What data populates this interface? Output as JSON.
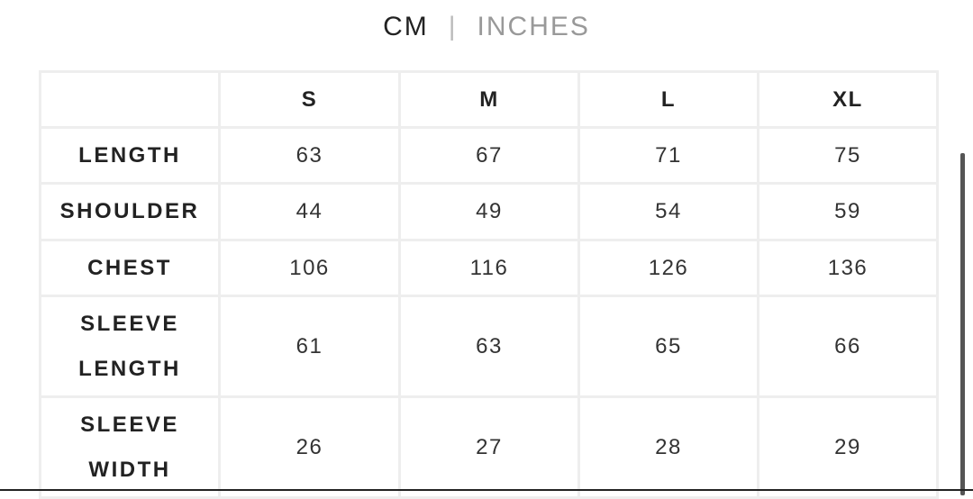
{
  "units": {
    "active": "CM",
    "separator": "|",
    "inactive": "INCHES"
  },
  "table": {
    "headers": [
      "",
      "S",
      "M",
      "L",
      "XL"
    ],
    "rows": [
      {
        "label": [
          "LENGTH"
        ],
        "values": [
          "63",
          "67",
          "71",
          "75"
        ]
      },
      {
        "label": [
          "SHOULDER"
        ],
        "values": [
          "44",
          "49",
          "54",
          "59"
        ]
      },
      {
        "label": [
          "CHEST"
        ],
        "values": [
          "106",
          "116",
          "126",
          "136"
        ]
      },
      {
        "label": [
          "SLEEVE",
          "LENGTH"
        ],
        "values": [
          "61",
          "63",
          "65",
          "66"
        ]
      },
      {
        "label": [
          "SLEEVE",
          "WIDTH"
        ],
        "values": [
          "26",
          "27",
          "28",
          "29"
        ]
      }
    ]
  }
}
